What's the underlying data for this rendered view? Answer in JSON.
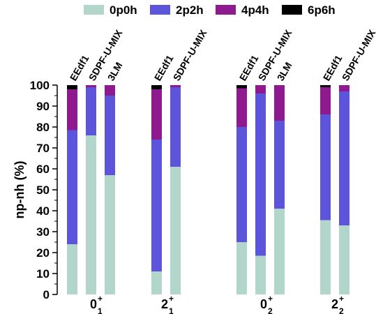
{
  "chart_data": {
    "type": "bar",
    "stacked": true,
    "ylabel": "np-nh (%)",
    "ylim": [
      0,
      100
    ],
    "yticks": [
      "0",
      "10",
      "20",
      "30",
      "40",
      "50",
      "60",
      "70",
      "80",
      "90",
      "100"
    ],
    "legend_position": "top",
    "components": [
      {
        "name": "0p0h",
        "color": "#b2d6cc"
      },
      {
        "name": "2p2h",
        "color": "#5c55db"
      },
      {
        "name": "4p4h",
        "color": "#8f1a8f"
      },
      {
        "name": "6p6h",
        "color": "#000000"
      }
    ],
    "groups": [
      {
        "label": "0",
        "sup": "+",
        "sub": "1",
        "bars": [
          {
            "label": "EEdf1",
            "values": [
              24,
              54.5,
              19.5,
              2
            ]
          },
          {
            "label": "SDPF-U-MIX",
            "values": [
              76,
              23,
              1,
              0
            ]
          },
          {
            "label": "3LM",
            "values": [
              57,
              38,
              5,
              0
            ]
          }
        ]
      },
      {
        "label": "2",
        "sup": "+",
        "sub": "1",
        "bars": [
          {
            "label": "EEdf1",
            "values": [
              11,
              63,
              24,
              2
            ]
          },
          {
            "label": "SDPF-U-MIX",
            "values": [
              61,
              38,
              1,
              0
            ]
          }
        ]
      },
      {
        "label": "0",
        "sup": "+",
        "sub": "2",
        "bars": [
          {
            "label": "EEdf1",
            "values": [
              25,
              55,
              18.5,
              1.5
            ]
          },
          {
            "label": "SDPF-U-MIX",
            "values": [
              18.5,
              77.5,
              4,
              0
            ]
          },
          {
            "label": "3LM",
            "values": [
              41,
              42,
              17,
              0
            ]
          }
        ]
      },
      {
        "label": "2",
        "sup": "+",
        "sub": "2",
        "bars": [
          {
            "label": "EEdf1",
            "values": [
              35.5,
              50.5,
              13,
              1
            ]
          },
          {
            "label": "SDPF-U-MIX",
            "values": [
              33,
              64,
              3,
              0
            ]
          }
        ]
      }
    ]
  }
}
